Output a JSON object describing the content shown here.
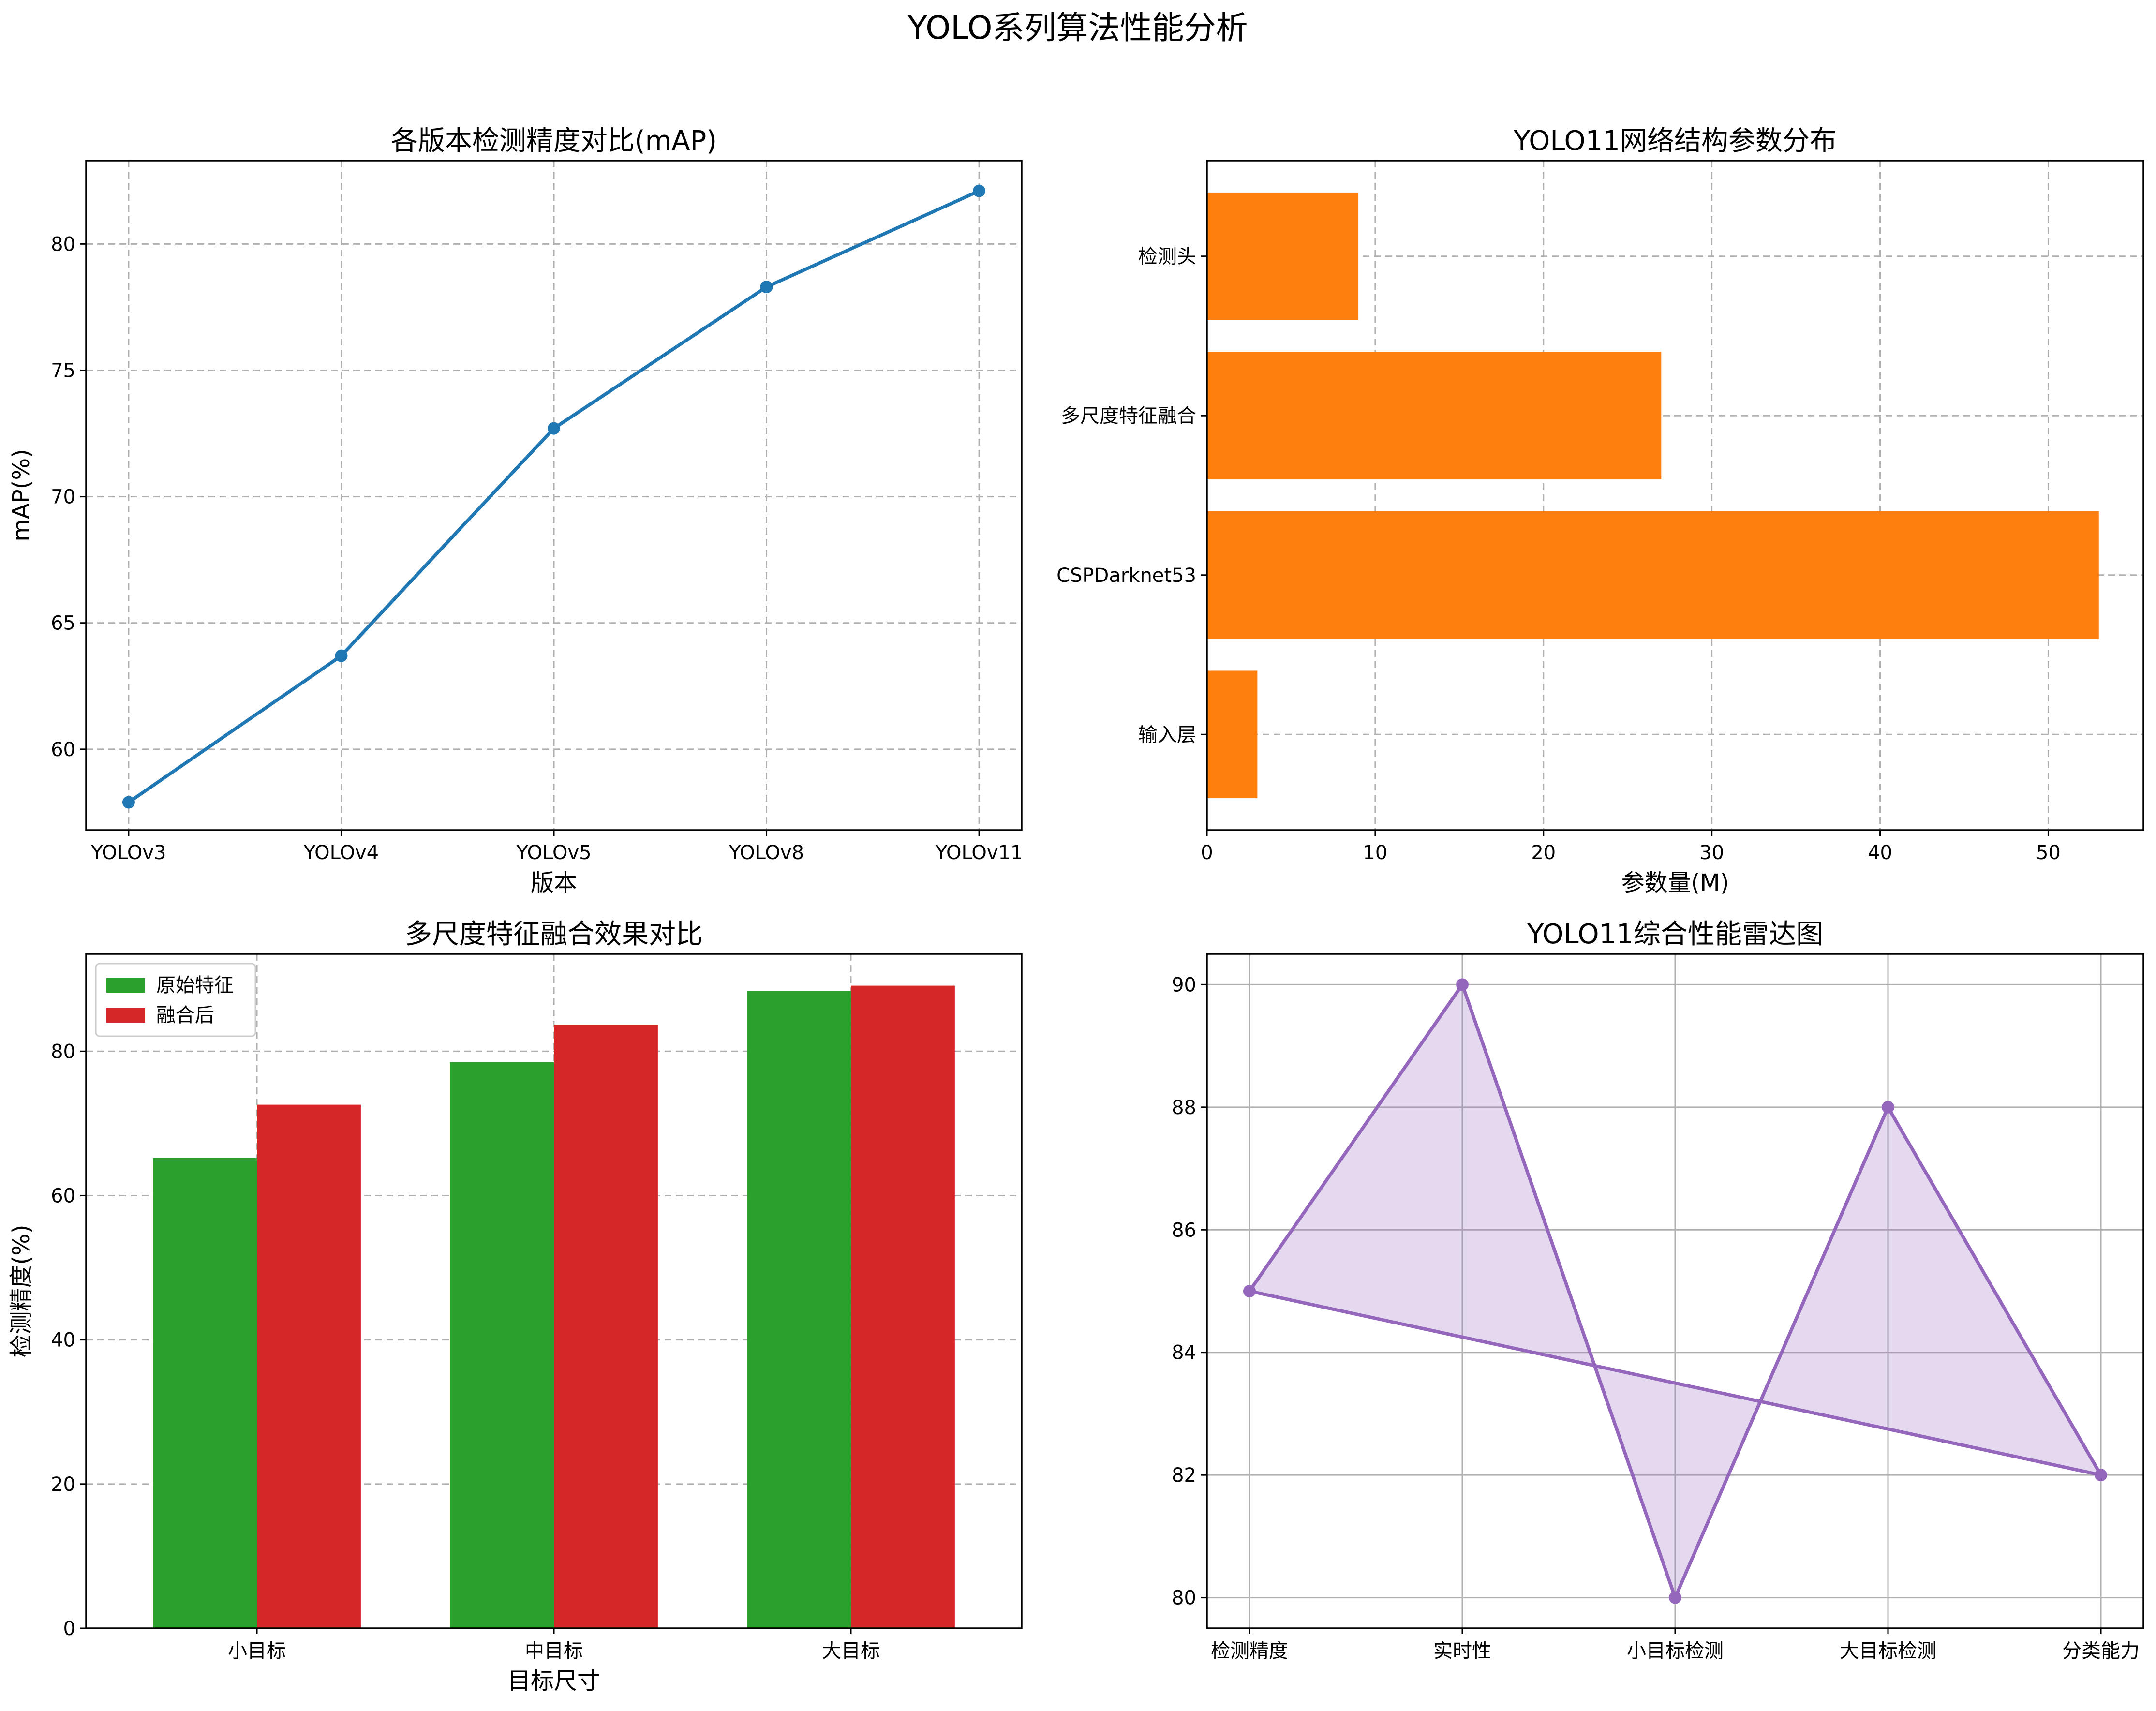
{
  "figure": {
    "title": "YOLO系列算法性能分析"
  },
  "colors": {
    "line": "#1f77b4",
    "hbar": "#ff7f0e",
    "green": "#2ca02c",
    "red": "#d62728",
    "purple": "#9467bd"
  },
  "chart_data": [
    {
      "type": "line",
      "title": "各版本检测精度对比(mAP)",
      "xlabel": "版本",
      "ylabel": "mAP(%)",
      "categories": [
        "YOLOv3",
        "YOLOv4",
        "YOLOv5",
        "YOLOv8",
        "YOLOv11"
      ],
      "values": [
        57.9,
        63.7,
        72.7,
        78.3,
        82.1
      ],
      "ylim": [
        56.8,
        83.3
      ],
      "yticks": [
        60,
        65,
        70,
        75,
        80
      ],
      "grid": true
    },
    {
      "type": "bar",
      "orientation": "horizontal",
      "title": "YOLO11网络结构参数分布",
      "xlabel": "参数量(M)",
      "ylabel": "",
      "categories": [
        "输入层",
        "CSPDarknet53",
        "多尺度特征融合",
        "检测头"
      ],
      "values": [
        3,
        53,
        27,
        9
      ],
      "xlim": [
        0,
        55.65
      ],
      "xticks": [
        0,
        10,
        20,
        30,
        40,
        50
      ],
      "grid": true
    },
    {
      "type": "bar",
      "title": "多尺度特征融合效果对比",
      "xlabel": "目标尺寸",
      "ylabel": "检测精度(%)",
      "categories": [
        "小目标",
        "中目标",
        "大目标"
      ],
      "series": [
        {
          "name": "原始特征",
          "values": [
            65.2,
            78.5,
            88.4
          ]
        },
        {
          "name": "融合后",
          "values": [
            72.6,
            83.7,
            89.1
          ]
        }
      ],
      "ylim": [
        0,
        93.5
      ],
      "yticks": [
        0,
        20,
        40,
        60,
        80
      ],
      "legend": "top-left",
      "grid": true
    },
    {
      "type": "line",
      "subtype": "radar-filled",
      "title": "YOLO11综合性能雷达图",
      "xlabel": "",
      "ylabel": "",
      "categories": [
        "检测精度",
        "实时性",
        "小目标检测",
        "大目标检测",
        "分类能力"
      ],
      "values": [
        85,
        90,
        80,
        88,
        82
      ],
      "ylim": [
        79.5,
        90.5
      ],
      "yticks": [
        80,
        82,
        84,
        86,
        88,
        90
      ],
      "grid": true
    }
  ]
}
